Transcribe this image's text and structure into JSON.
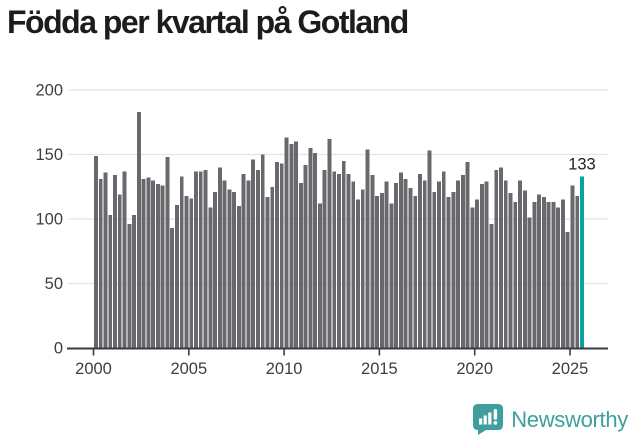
{
  "title": "Födda per kvartal på Gotland",
  "footer": {
    "brand": "Newsworthy"
  },
  "colors": {
    "title_text": "#1c1c1c",
    "axis_text": "#3d3d44",
    "grid_line": "#e4e4e4",
    "axis_line": "#3b3b40",
    "bar": "#68686d",
    "highlight_bar": "#0aa3a3",
    "brand_teal": "#3f9e9e",
    "background": "#ffffff"
  },
  "chart_data": {
    "type": "bar",
    "title": "Födda per kvartal på Gotland",
    "x_start": "2000-Q1",
    "x_end": "2025-Q3",
    "x_unit": "quarter",
    "ylabel": "",
    "xlabel": "",
    "ylim": [
      0,
      200
    ],
    "grid": true,
    "y_ticks": [
      0,
      50,
      100,
      150,
      200
    ],
    "x_ticks": [
      2000,
      2005,
      2010,
      2015,
      2020,
      2025
    ],
    "values": [
      149,
      131,
      136,
      103,
      134,
      119,
      137,
      96,
      103,
      183,
      131,
      132,
      130,
      127,
      126,
      148,
      93,
      111,
      133,
      118,
      116,
      137,
      137,
      138,
      109,
      121,
      140,
      130,
      123,
      121,
      110,
      135,
      130,
      146,
      138,
      150,
      117,
      125,
      144,
      143,
      163,
      158,
      160,
      128,
      142,
      155,
      151,
      112,
      138,
      162,
      137,
      135,
      145,
      135,
      129,
      115,
      123,
      154,
      134,
      118,
      120,
      129,
      112,
      128,
      136,
      131,
      124,
      118,
      135,
      130,
      153,
      121,
      129,
      137,
      117,
      121,
      130,
      134,
      144,
      109,
      115,
      127,
      129,
      96,
      138,
      140,
      130,
      120,
      113,
      130,
      122,
      101,
      113,
      119,
      117,
      113,
      113,
      109,
      115,
      90,
      126,
      118,
      133
    ],
    "highlight": {
      "index": 102,
      "quarter": "2025-Q3",
      "value": 133,
      "label": "133"
    },
    "legend": null
  }
}
